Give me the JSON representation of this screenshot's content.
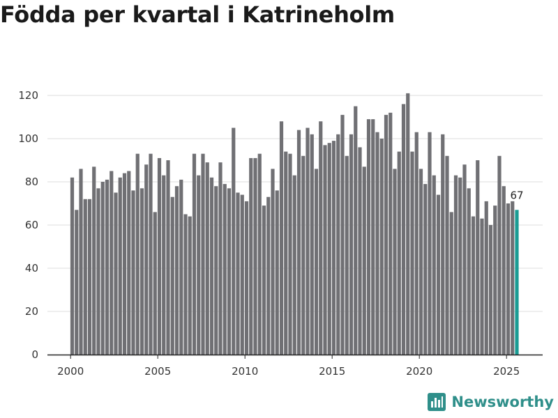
{
  "page": {
    "title": "Födda per kvartal i Katrineholm"
  },
  "brand": {
    "name": "Newsworthy",
    "icon": "newsworthy-logo-icon",
    "color": "#2f8f8a"
  },
  "chart_data": {
    "type": "bar",
    "title": "Födda per kvartal i Katrineholm",
    "xlabel": "",
    "ylabel": "",
    "ylim": [
      0,
      120
    ],
    "yticks": [
      0,
      20,
      40,
      60,
      80,
      100,
      120
    ],
    "xticks": [
      {
        "label": "2000",
        "year": 2000
      },
      {
        "label": "2005",
        "year": 2005
      },
      {
        "label": "2010",
        "year": 2010
      },
      {
        "label": "2015",
        "year": 2015
      },
      {
        "label": "2020",
        "year": 2020
      },
      {
        "label": "2025",
        "year": 2025
      }
    ],
    "start_year": 2000,
    "start_quarter": 1,
    "bar_color": "#707074",
    "highlight_color": "#1a9c94",
    "grid": true,
    "values": [
      82,
      67,
      86,
      72,
      72,
      87,
      77,
      80,
      81,
      85,
      75,
      82,
      84,
      85,
      76,
      93,
      77,
      88,
      93,
      66,
      91,
      83,
      90,
      73,
      78,
      81,
      65,
      64,
      93,
      83,
      93,
      89,
      82,
      78,
      89,
      79,
      77,
      105,
      75,
      74,
      71,
      91,
      91,
      93,
      69,
      73,
      86,
      76,
      108,
      94,
      93,
      83,
      104,
      92,
      105,
      102,
      86,
      108,
      97,
      98,
      99,
      102,
      111,
      92,
      102,
      115,
      96,
      87,
      109,
      109,
      103,
      100,
      111,
      112,
      86,
      94,
      116,
      121,
      94,
      103,
      86,
      79,
      103,
      83,
      74,
      102,
      92,
      66,
      83,
      82,
      88,
      77,
      64,
      90,
      63,
      71,
      60,
      69,
      92,
      78,
      70,
      71,
      67
    ],
    "highlight": {
      "index": 102,
      "label": "67"
    }
  }
}
